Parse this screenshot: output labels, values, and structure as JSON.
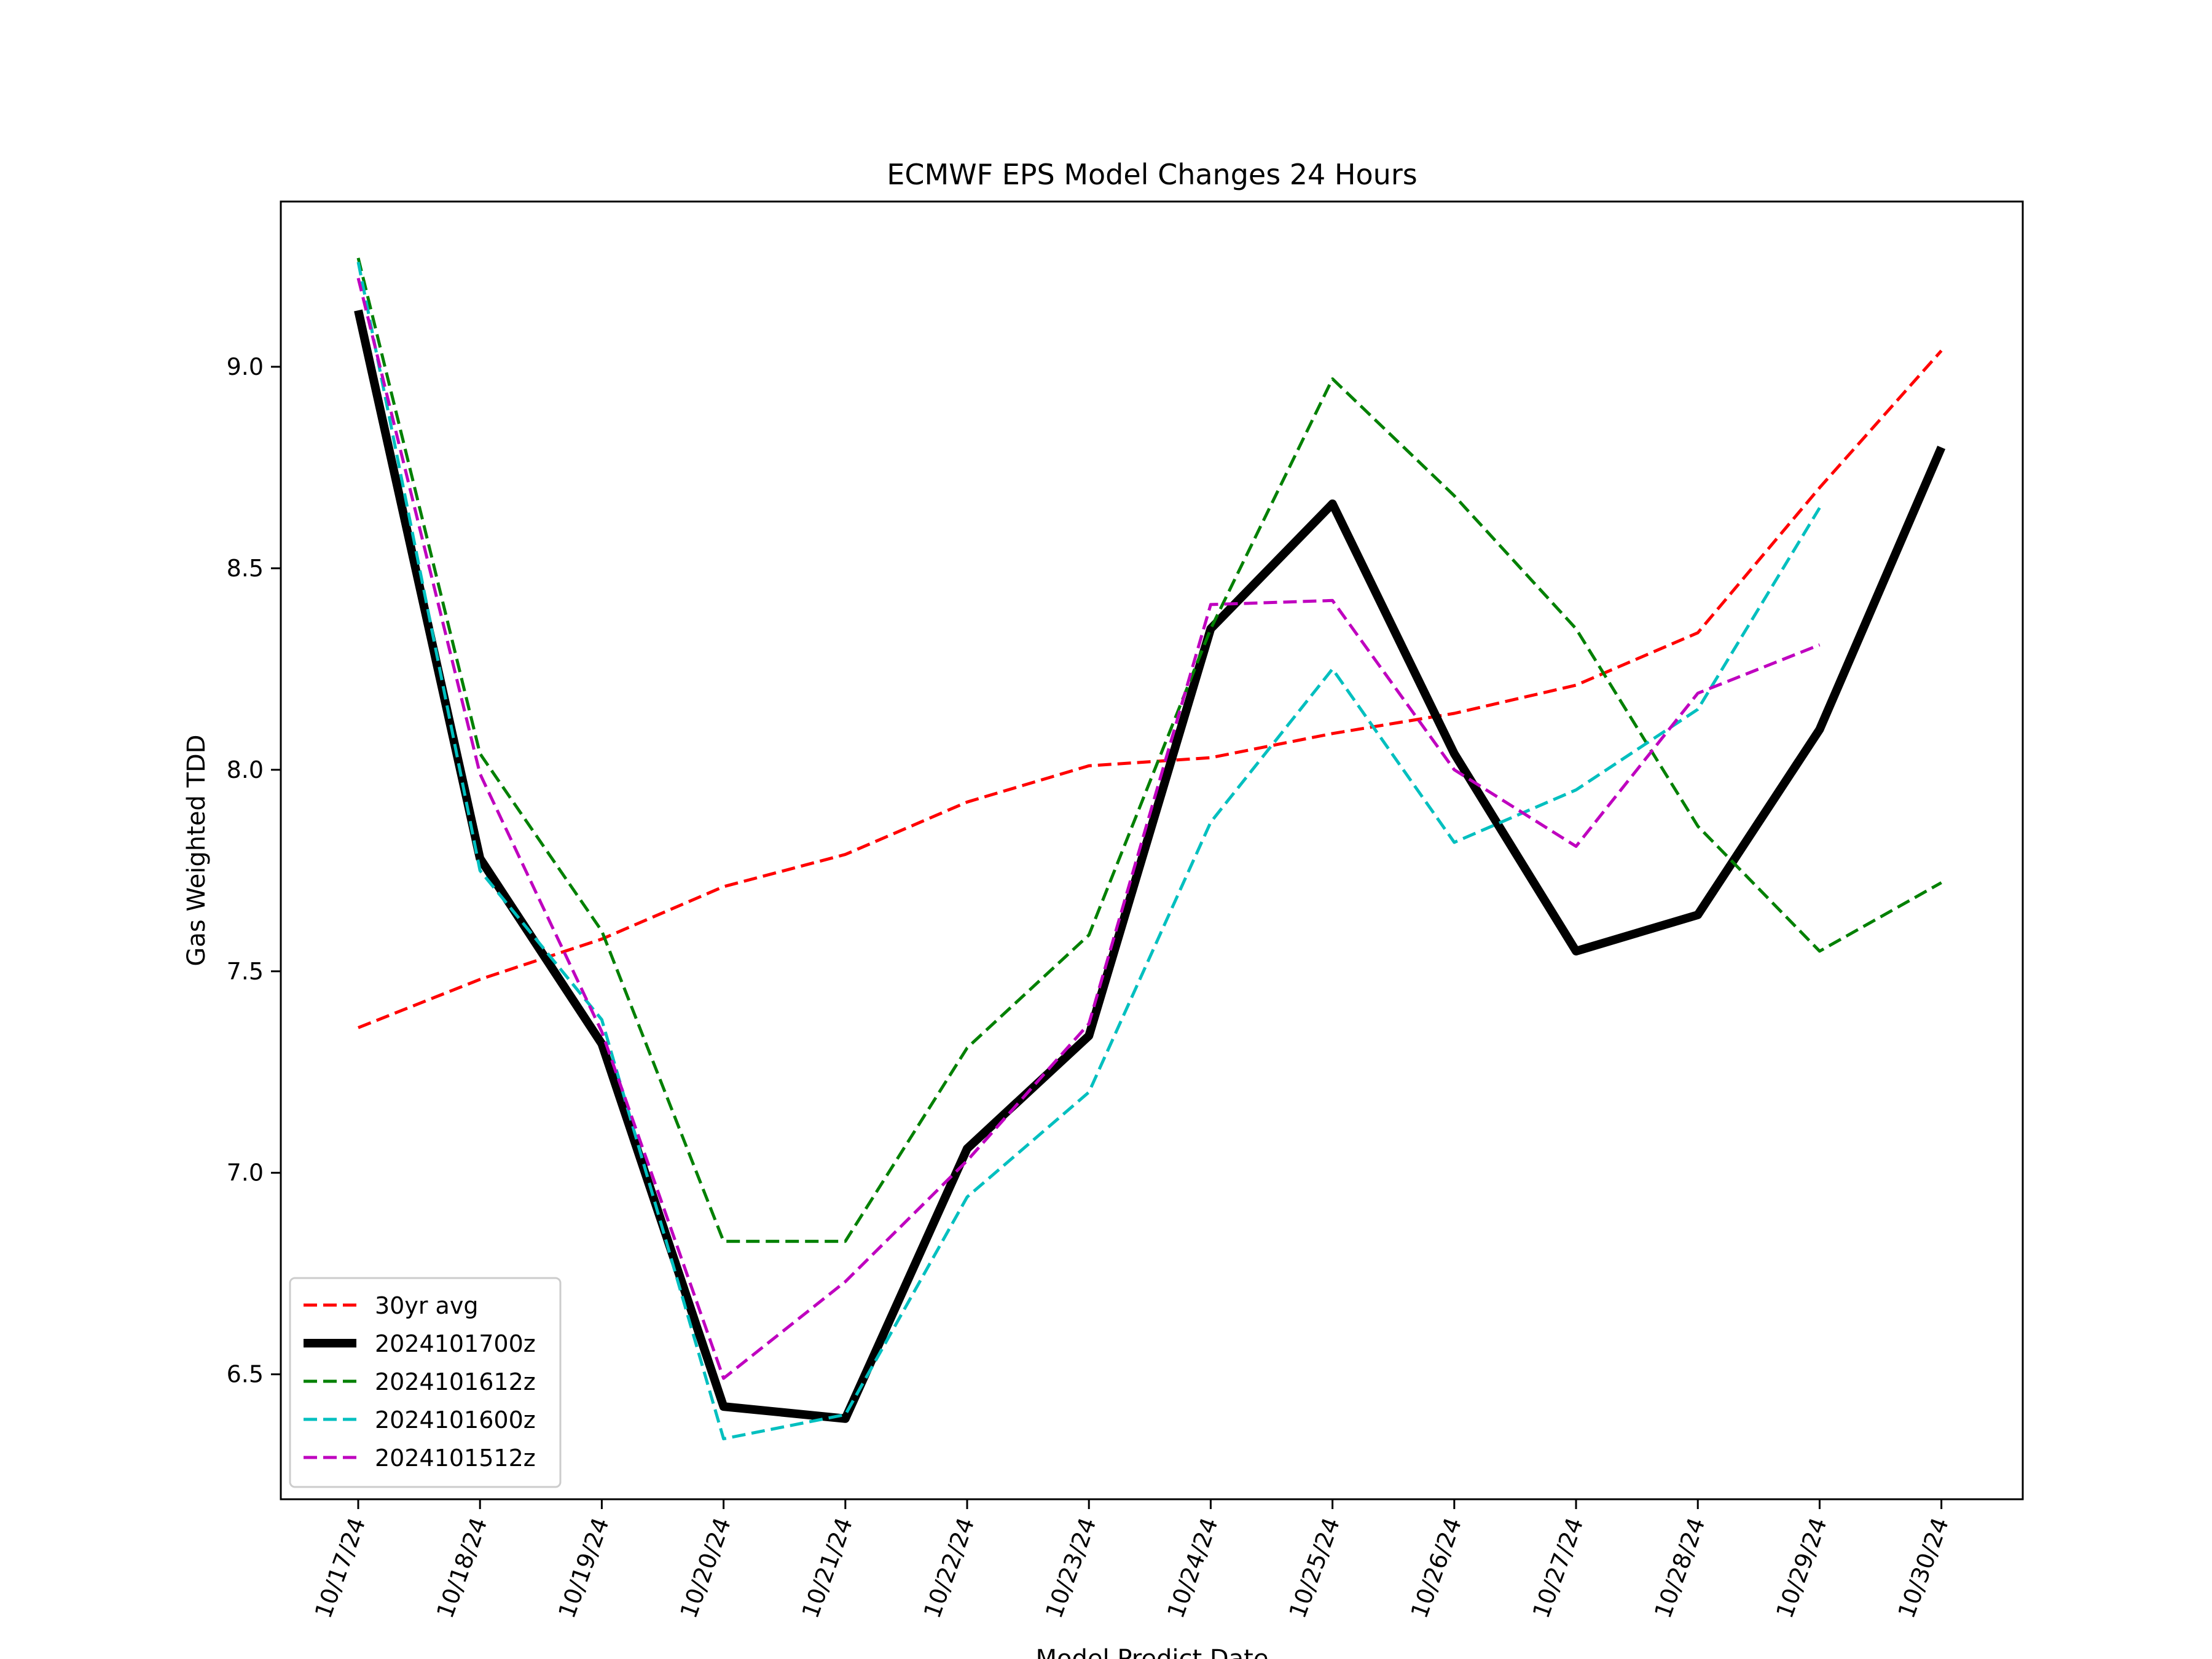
{
  "chart_data": {
    "type": "line",
    "title": "ECMWF EPS Model Changes 24 Hours",
    "xlabel": "Model Predict Date",
    "ylabel": "Gas Weighted TDD",
    "categories": [
      "10/17/24",
      "10/18/24",
      "10/19/24",
      "10/20/24",
      "10/21/24",
      "10/22/24",
      "10/23/24",
      "10/24/24",
      "10/25/24",
      "10/26/24",
      "10/27/24",
      "10/28/24",
      "10/29/24",
      "10/30/24"
    ],
    "yticks": [
      "6.5",
      "7.0",
      "7.5",
      "8.0",
      "8.5",
      "9.0"
    ],
    "ylim": [
      6.19,
      9.41
    ],
    "grid": false,
    "legend_position": "lower-left",
    "series": [
      {
        "name": "30yr avg",
        "color": "#ff0000",
        "style": "dashed",
        "width": "thin",
        "values": [
          7.36,
          7.48,
          7.58,
          7.71,
          7.79,
          7.92,
          8.01,
          8.03,
          8.09,
          8.14,
          8.21,
          8.34,
          8.7,
          9.04
        ]
      },
      {
        "name": "2024101700z",
        "color": "#000000",
        "style": "solid",
        "width": "thick",
        "values": [
          9.14,
          7.78,
          7.32,
          6.42,
          6.39,
          7.06,
          7.34,
          8.35,
          8.66,
          8.04,
          7.55,
          7.64,
          8.1,
          8.8
        ]
      },
      {
        "name": "2024101612z",
        "color": "#008000",
        "style": "dashed",
        "width": "thin",
        "values": [
          9.27,
          8.04,
          7.6,
          6.83,
          6.83,
          7.31,
          7.59,
          8.35,
          8.97,
          8.68,
          8.35,
          7.86,
          7.55,
          7.72
        ]
      },
      {
        "name": "2024101600z",
        "color": "#00bfbf",
        "style": "dashed",
        "width": "thin",
        "values": [
          9.26,
          7.75,
          7.38,
          6.34,
          6.4,
          6.94,
          7.2,
          7.87,
          8.25,
          7.82,
          7.95,
          8.15,
          8.65,
          null
        ]
      },
      {
        "name": "2024101512z",
        "color": "#bf00bf",
        "style": "dashed",
        "width": "thin",
        "values": [
          9.22,
          7.99,
          7.35,
          6.49,
          6.73,
          7.03,
          7.37,
          8.41,
          8.42,
          8.0,
          7.81,
          8.19,
          8.31,
          null
        ]
      }
    ]
  }
}
